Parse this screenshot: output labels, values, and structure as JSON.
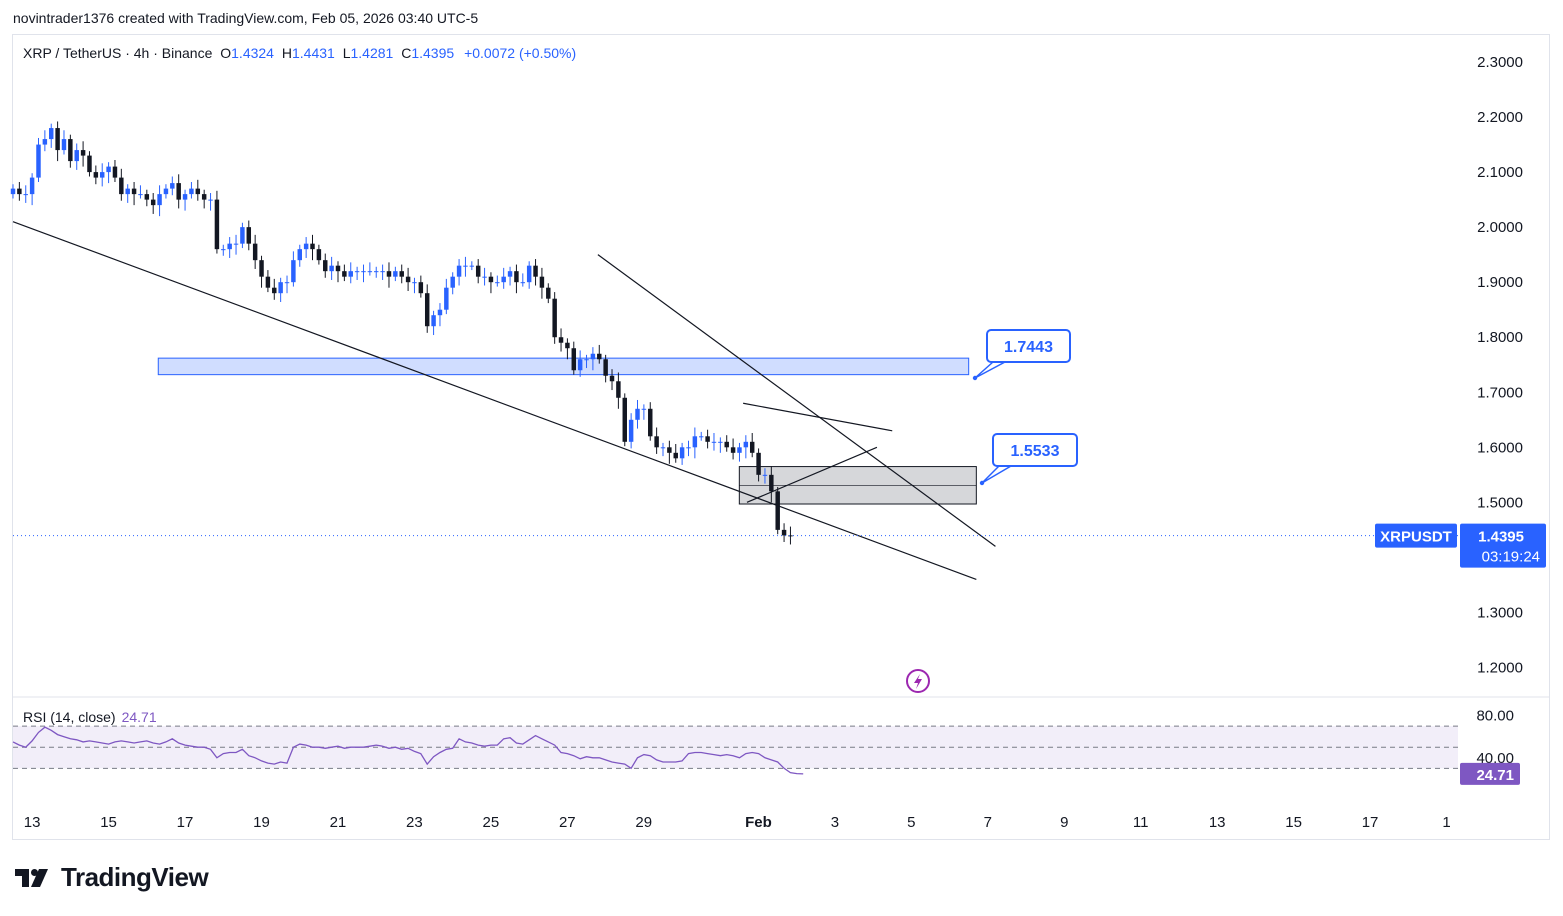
{
  "header": {
    "credit": "novintrader1376 created with TradingView.com, Feb 05, 2026 03:40 UTC-5"
  },
  "legend": {
    "symbol": "XRP / TetherUS · 4h · Binance",
    "open_label": "O",
    "open": "1.4324",
    "high_label": "H",
    "high": "1.4431",
    "low_label": "L",
    "low": "1.4281",
    "close_label": "C",
    "close": "1.4395",
    "change": "+0.0072 (+0.50%)"
  },
  "price_tag": {
    "ticker": "XRPUSDT",
    "price": "1.4395",
    "countdown": "03:19:24"
  },
  "callouts": [
    {
      "label": "1.7443",
      "price": 1.7443
    },
    {
      "label": "1.5533",
      "price": 1.5533
    }
  ],
  "rsi": {
    "label": "RSI (14, close)",
    "value": "24.71",
    "levels": [
      80,
      40
    ],
    "tick_labels": [
      "80.00",
      "40.00"
    ],
    "current_tag": "24.71"
  },
  "footer": {
    "brand": "TradingView"
  },
  "colors": {
    "up": "#2962ff",
    "down": "#131722",
    "rsi_line": "#7e57c2",
    "zone_blue": "#bbd0fb",
    "zone_gray": "#d1d4dc",
    "accent": "#2962ff"
  },
  "chart_data": {
    "type": "candlestick",
    "title": "XRP / TetherUS · 4h · Binance",
    "ylim": [
      1.15,
      2.34
    ],
    "y_ticks": [
      "2.3000",
      "2.2000",
      "2.1000",
      "2.0000",
      "1.9000",
      "1.8000",
      "1.7000",
      "1.6000",
      "1.5000",
      "1.3000",
      "1.2000"
    ],
    "x_ticks": [
      "13",
      "15",
      "17",
      "19",
      "21",
      "23",
      "25",
      "27",
      "29",
      "Feb",
      "3",
      "5",
      "7",
      "9",
      "11",
      "13",
      "15",
      "17",
      "1"
    ],
    "x_tick_days": [
      13,
      15,
      17,
      19,
      21,
      23,
      25,
      27,
      29,
      32,
      34,
      36,
      38,
      40,
      42,
      44,
      46,
      48,
      50
    ],
    "x_range_days": [
      12.5,
      50.3
    ],
    "candles_close": [
      2.07,
      2.06,
      2.06,
      2.09,
      2.15,
      2.16,
      2.18,
      2.14,
      2.16,
      2.12,
      2.14,
      2.13,
      2.1,
      2.09,
      2.1,
      2.11,
      2.09,
      2.06,
      2.07,
      2.06,
      2.06,
      2.05,
      2.04,
      2.06,
      2.07,
      2.08,
      2.05,
      2.06,
      2.07,
      2.06,
      2.05,
      2.05,
      1.96,
      1.96,
      1.97,
      1.97,
      2.0,
      1.97,
      1.94,
      1.91,
      1.89,
      1.88,
      1.9,
      1.9,
      1.94,
      1.96,
      1.97,
      1.96,
      1.94,
      1.92,
      1.93,
      1.92,
      1.91,
      1.92,
      1.92,
      1.92,
      1.92,
      1.92,
      1.92,
      1.91,
      1.92,
      1.91,
      1.9,
      1.9,
      1.88,
      1.82,
      1.84,
      1.85,
      1.89,
      1.91,
      1.93,
      1.93,
      1.93,
      1.91,
      1.91,
      1.9,
      1.9,
      1.91,
      1.92,
      1.9,
      1.9,
      1.93,
      1.91,
      1.89,
      1.87,
      1.8,
      1.79,
      1.78,
      1.74,
      1.76,
      1.76,
      1.77,
      1.76,
      1.73,
      1.72,
      1.69,
      1.61,
      1.65,
      1.67,
      1.67,
      1.62,
      1.6,
      1.6,
      1.59,
      1.58,
      1.6,
      1.6,
      1.62,
      1.62,
      1.61,
      1.61,
      1.61,
      1.6,
      1.59,
      1.6,
      1.61,
      1.59,
      1.55,
      1.55,
      1.52,
      1.45,
      1.44,
      1.4395
    ],
    "candle_start_day": 12.5,
    "candle_step_days": 0.1667,
    "trendlines": [
      {
        "from": [
          12.5,
          2.01
        ],
        "to": [
          37.7,
          1.36
        ]
      },
      {
        "from": [
          27.8,
          1.95
        ],
        "to": [
          38.2,
          1.42
        ]
      },
      {
        "from": [
          31.6,
          1.68
        ],
        "to": [
          35.5,
          1.63
        ]
      },
      {
        "from": [
          31.7,
          1.5
        ],
        "to": [
          35.1,
          1.6
        ]
      }
    ],
    "zones": [
      {
        "name": "blue-zone",
        "from_day": 16.3,
        "to_day": 37.5,
        "top": 1.762,
        "bottom": 1.732
      },
      {
        "name": "gray-zone",
        "from_day": 31.5,
        "to_day": 37.7,
        "top": 1.565,
        "bottom": 1.497
      }
    ],
    "rsi_series": [
      55,
      52,
      50,
      56,
      64,
      69,
      66,
      62,
      60,
      58,
      57,
      55,
      56,
      55,
      54,
      53,
      55,
      56,
      55,
      54,
      55,
      56,
      54,
      53,
      55,
      58,
      54,
      52,
      51,
      50,
      50,
      48,
      40,
      44,
      45,
      45,
      48,
      42,
      40,
      37,
      35,
      34,
      36,
      35,
      50,
      53,
      52,
      50,
      50,
      49,
      50,
      51,
      49,
      50,
      50,
      50,
      51,
      52,
      51,
      49,
      50,
      48,
      49,
      46,
      44,
      34,
      41,
      45,
      48,
      49,
      58,
      55,
      54,
      52,
      51,
      52,
      52,
      58,
      59,
      54,
      53,
      57,
      61,
      58,
      55,
      52,
      45,
      44,
      42,
      39,
      41,
      40,
      40,
      38,
      36,
      35,
      34,
      30,
      40,
      43,
      42,
      38,
      36,
      36,
      36,
      37,
      44,
      45,
      45,
      44,
      43,
      42,
      43,
      42,
      40,
      44,
      45,
      44,
      40,
      38,
      36,
      30,
      26,
      25,
      24.71
    ]
  }
}
